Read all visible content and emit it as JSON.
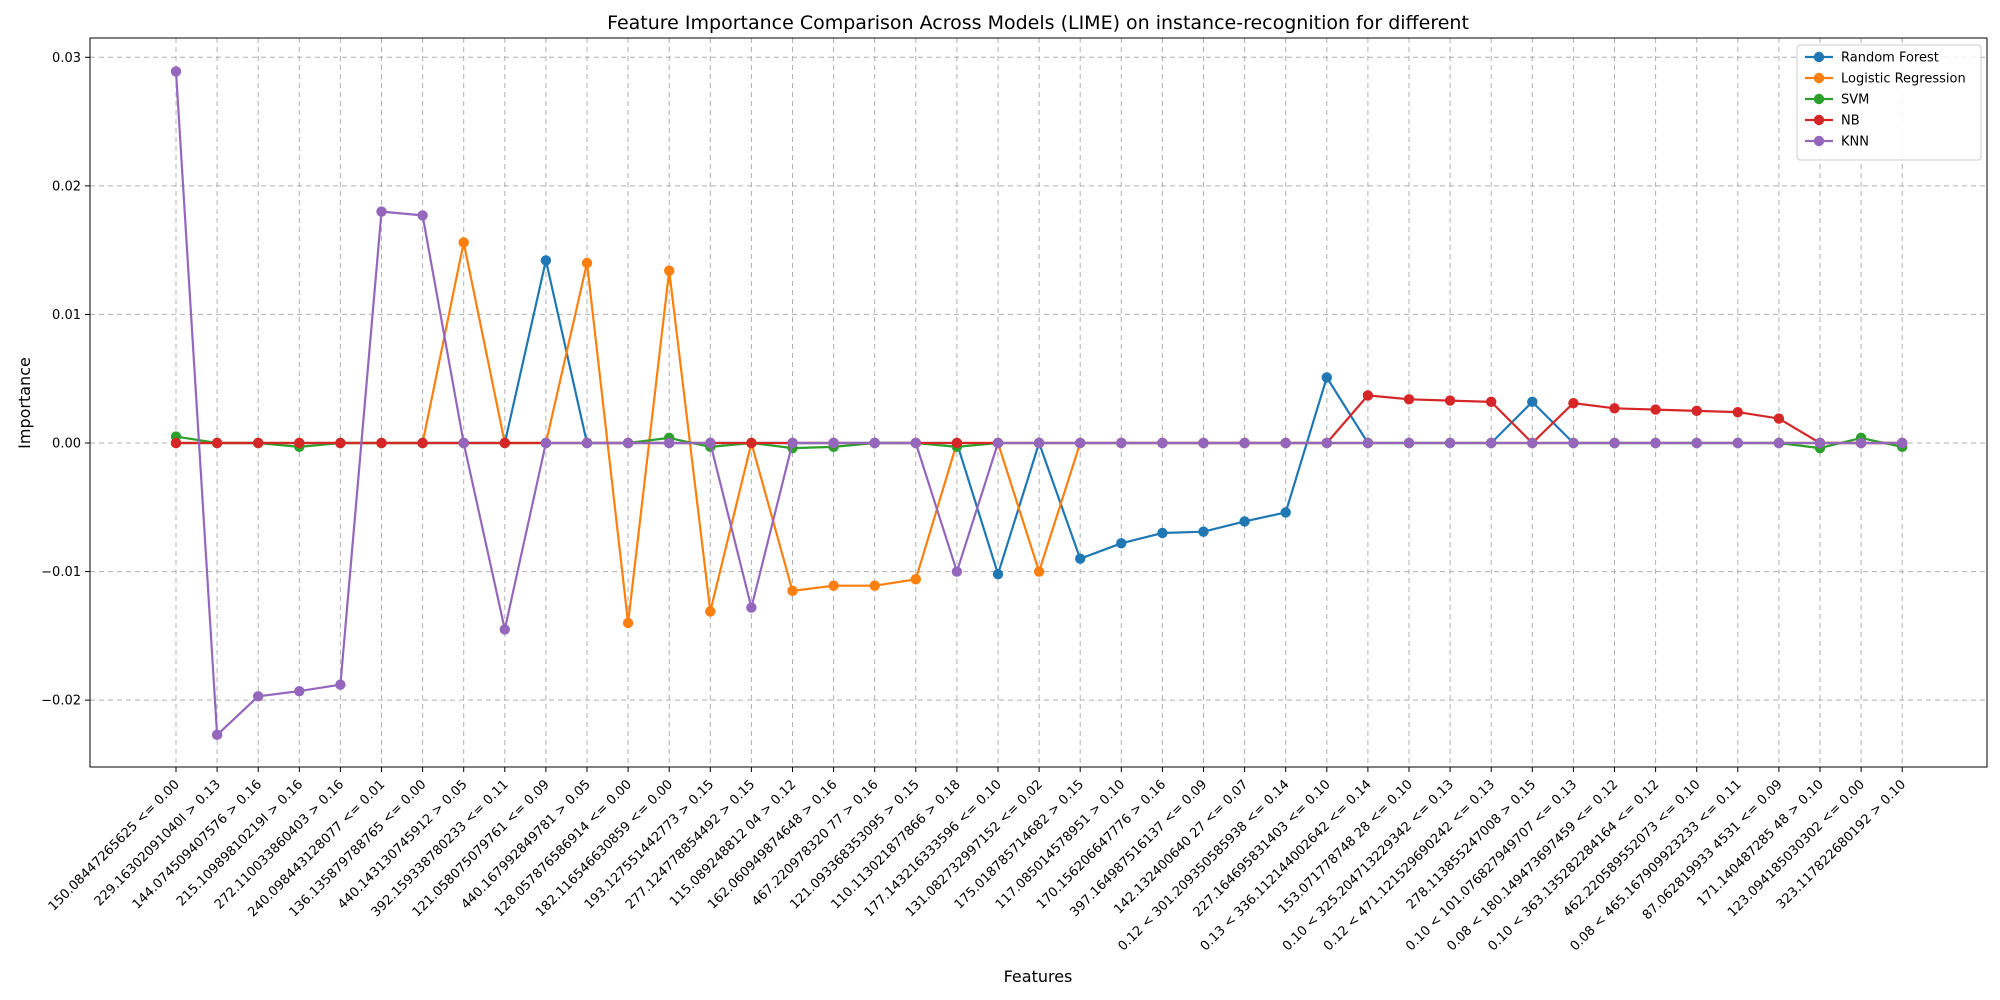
{
  "chart_data": {
    "type": "line",
    "title": "Feature Importance Comparison Across Models (LIME) on instance-recognition for different",
    "xlabel": "Features",
    "ylabel": "Importance",
    "ylim": [
      -0.0252,
      0.0315
    ],
    "yticks": [
      -0.02,
      -0.01,
      0.0,
      0.01,
      0.02,
      0.03
    ],
    "ytick_labels": [
      "−0.02",
      "−0.01",
      "0.00",
      "0.01",
      "0.02",
      "0.03"
    ],
    "grid": true,
    "legend_position": "top-right",
    "categories": [
      "150.08447265625 <= 0.00",
      "229.16302091040I > 0.13",
      "144.074509407576 > 0.16",
      "215.10989810219I > 0.16",
      "272.110033860403 > 0.16",
      "240.098443128077 <= 0.01",
      "136.135879788765 <= 0.00",
      "440.143130745912 > 0.05",
      "392.159338780233 <= 0.11",
      "121.058075079761 <= 0.09",
      "440.167992849781 > 0.05",
      "128.057876586914 <= 0.00",
      "182.116546630859 <= 0.00",
      "193.127551442773 > 0.15",
      "277.124778854492 > 0.15",
      "115.089248812 04 > 0.12",
      "162.060949874648 > 0.16",
      "467.220978320 77 > 0.16",
      "121.093368353095 > 0.15",
      "110.113021877866 > 0.18",
      "177.143216333596 <= 0.10",
      "131.082732997152 <= 0.02",
      "175.018785714682 > 0.15",
      "117.085014578951 > 0.10",
      "170.156206647776 > 0.16",
      "397.164987516137 <= 0.09",
      "142.132400640 27 <= 0.07",
      "0.12 < 301.209350585938 <= 0.14",
      "227.164695831403 <= 0.10",
      "0.13 < 336.112144002642 <= 0.14",
      "153.071778748 28 <= 0.10",
      "0.10 < 325.204713229342 <= 0.13",
      "0.12 < 471.121529690242 <= 0.13",
      "278.113855247008 > 0.15",
      "0.10 < 101.076827949707 <= 0.13",
      "0.08 < 180.149473697459 <= 0.12",
      "0.10 < 363.135282284164 <= 0.12",
      "462.220589552073 <= 0.10",
      "0.08 < 465.167909923233 <= 0.11",
      "87.062819933 4531 <= 0.09",
      "171.140487285 48 > 0.10",
      "123.094185030302 <= 0.00",
      "323.117822680192 > 0.10"
    ],
    "series": [
      {
        "name": "Random Forest",
        "color": "#1f77b4",
        "values": [
          0,
          0,
          0,
          0,
          0,
          0,
          0,
          0,
          0,
          0.0142,
          0,
          0,
          0,
          0,
          0,
          0,
          0,
          0,
          0,
          0,
          -0.0102,
          0,
          -0.009,
          -0.0078,
          -0.007,
          -0.0069,
          -0.0061,
          -0.0054,
          0.0051,
          0,
          0,
          0,
          0,
          0.0032,
          0,
          0,
          0,
          0,
          0,
          0,
          0,
          0,
          0
        ]
      },
      {
        "name": "Logistic Regression",
        "color": "#ff7f0e",
        "values": [
          0,
          0,
          0,
          0,
          0,
          0,
          0,
          0.0156,
          0,
          0,
          0.014,
          -0.014,
          0.0134,
          -0.0131,
          0,
          -0.0115,
          -0.0111,
          -0.0111,
          -0.0106,
          0,
          0,
          -0.01,
          0,
          0,
          0,
          0,
          0,
          0,
          0,
          0,
          0,
          0,
          0,
          0,
          0,
          0,
          0,
          0,
          0,
          0,
          0,
          0,
          0
        ]
      },
      {
        "name": "SVM",
        "color": "#2ca02c",
        "values": [
          0.0005,
          0,
          0,
          -0.0003,
          0,
          0,
          0,
          0,
          0,
          0,
          0,
          0,
          0.0004,
          -0.0003,
          0,
          -0.0004,
          -0.0003,
          0,
          0,
          -0.0003,
          0,
          0,
          0,
          0,
          0,
          0,
          0,
          0,
          0,
          0,
          0,
          0,
          0,
          0,
          0,
          0,
          0,
          0,
          0,
          0,
          -0.0004,
          0.0004,
          -0.0003
        ]
      },
      {
        "name": "NB",
        "color": "#d62728",
        "values": [
          0,
          0,
          0,
          0,
          0,
          0,
          0,
          0,
          0,
          0,
          0,
          0,
          0,
          0,
          0,
          0,
          0,
          0,
          0,
          0,
          0,
          0,
          0,
          0,
          0,
          0,
          0,
          0,
          0,
          0.0037,
          0.0034,
          0.0033,
          0.0032,
          0,
          0.0031,
          0.0027,
          0.0026,
          0.0025,
          0.0024,
          0.0019,
          0,
          0,
          0
        ]
      },
      {
        "name": "KNN",
        "color": "#9467bd",
        "values": [
          0.0289,
          -0.0227,
          -0.0197,
          -0.0193,
          -0.0188,
          0.018,
          0.0177,
          0,
          -0.0145,
          0,
          0,
          0,
          0,
          0,
          -0.0128,
          0,
          0,
          0,
          0,
          -0.01,
          0,
          0,
          0,
          0,
          0,
          0,
          0,
          0,
          0,
          0,
          0,
          0,
          0,
          0,
          0,
          0,
          0,
          0,
          0,
          0,
          0,
          0,
          0
        ]
      }
    ]
  }
}
